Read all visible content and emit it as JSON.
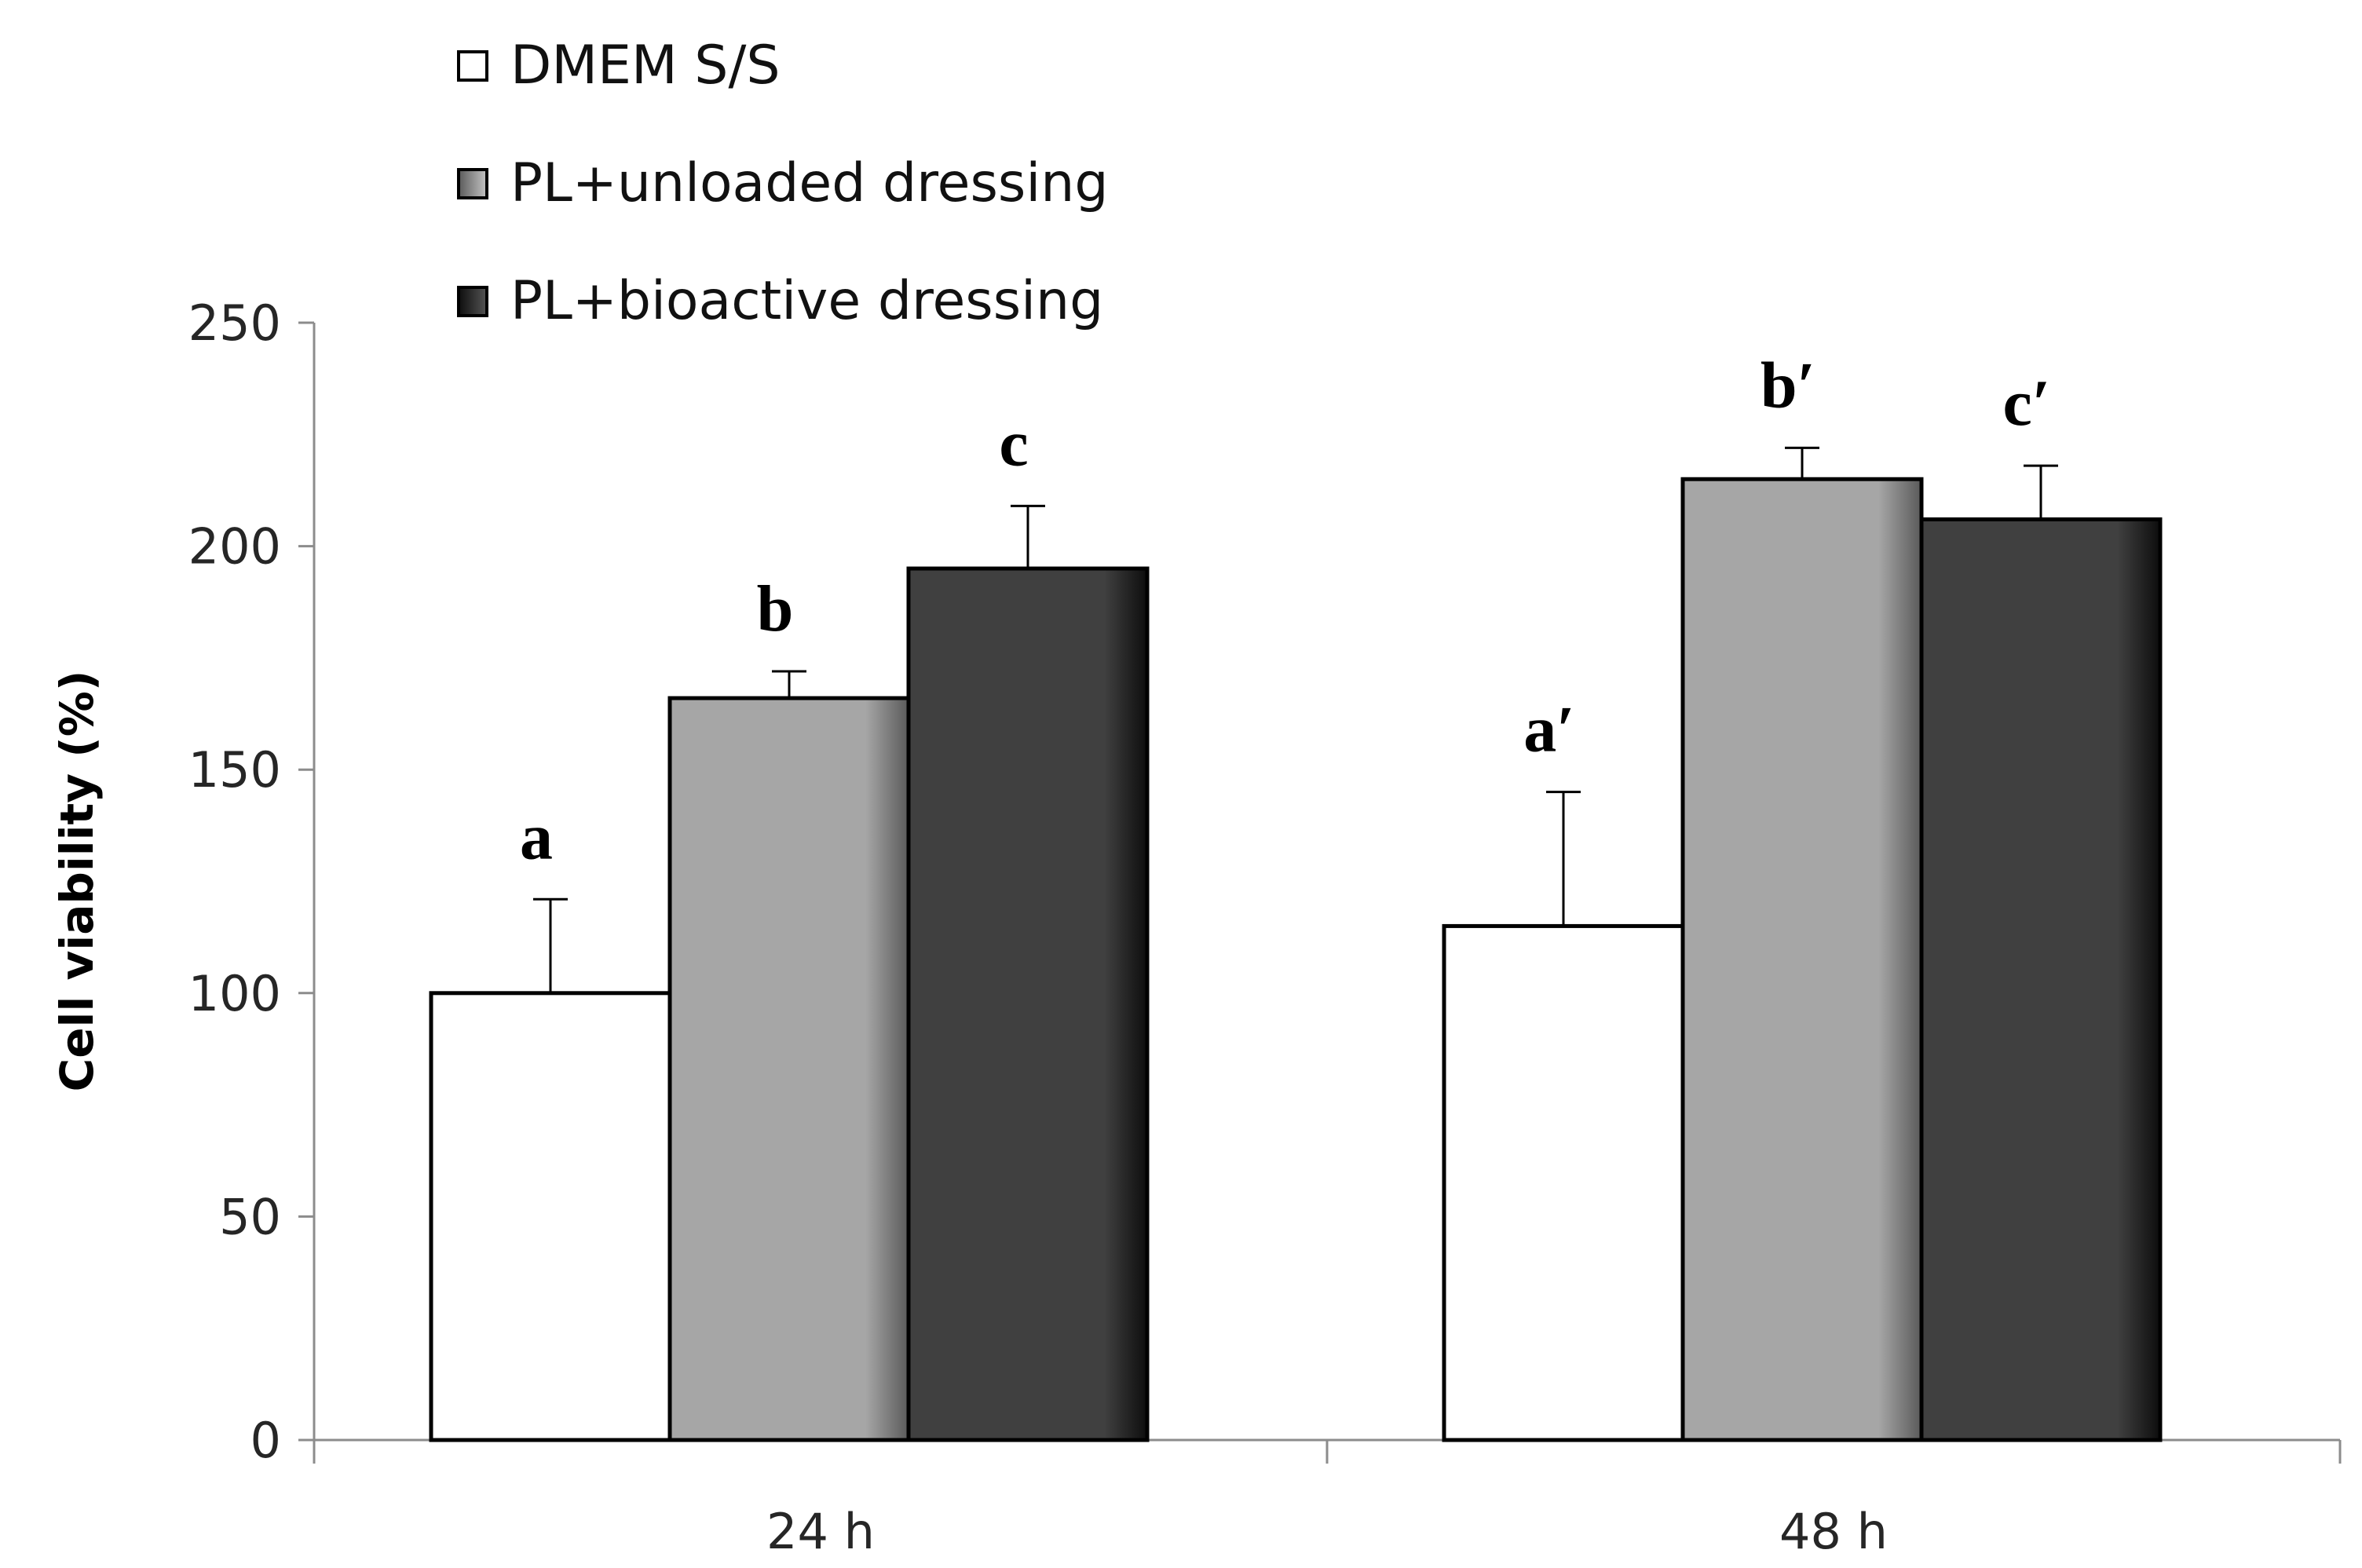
{
  "chart_data": {
    "type": "bar",
    "title": "",
    "xlabel": "",
    "ylabel": "Cell viability (%)",
    "ylim": [
      0,
      250
    ],
    "yticks": [
      0,
      50,
      100,
      150,
      200,
      250
    ],
    "grid": false,
    "legend_position": "top-left",
    "categories": [
      "24 h",
      "48 h"
    ],
    "series": [
      {
        "name": "DMEM S/S",
        "color": "#ffffff",
        "values": [
          100,
          115
        ],
        "errors": [
          21,
          30
        ],
        "labels": [
          "a",
          "a′"
        ]
      },
      {
        "name": "PL+unloaded dressing",
        "color": "#a6a6a6",
        "values": [
          166,
          215
        ],
        "errors": [
          6,
          7
        ],
        "labels": [
          "b",
          "b′"
        ]
      },
      {
        "name": "PL+bioactive dressing",
        "color": "#404040",
        "values": [
          195,
          206
        ],
        "errors": [
          14,
          12
        ],
        "labels": [
          "c",
          "c′"
        ]
      }
    ]
  }
}
